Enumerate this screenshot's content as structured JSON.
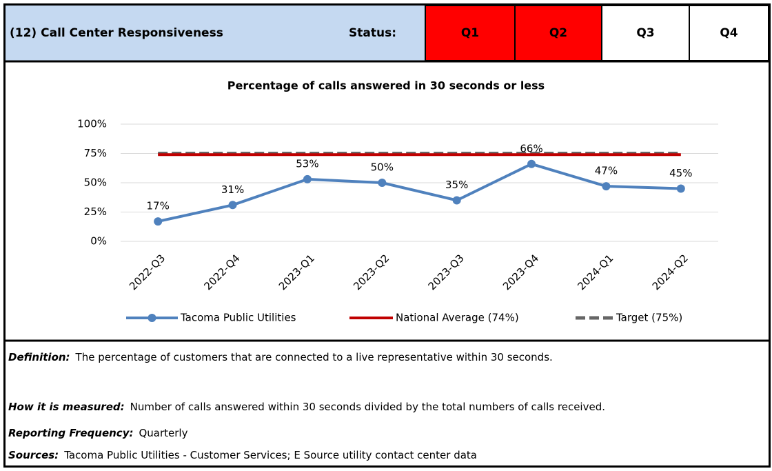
{
  "header": {
    "title": "(12) Call Center Responsiveness",
    "status_label": "Status:",
    "quarters": [
      {
        "label": "Q1",
        "color": "#ff0000"
      },
      {
        "label": "Q2",
        "color": "#ff0000"
      },
      {
        "label": "Q3",
        "color": "#ffffff"
      },
      {
        "label": "Q4",
        "color": "#ffffff"
      }
    ]
  },
  "chart_data": {
    "type": "line",
    "title": "Percentage of calls answered in 30 seconds or less",
    "categories": [
      "2022-Q3",
      "2022-Q4",
      "2023-Q1",
      "2023-Q2",
      "2023-Q3",
      "2023-Q4",
      "2024-Q1",
      "2024-Q2"
    ],
    "series": [
      {
        "name": "Tacoma Public Utilities",
        "color": "#4f81bd",
        "markers": true,
        "values": [
          17,
          31,
          53,
          50,
          35,
          66,
          47,
          45
        ],
        "value_labels": [
          "17%",
          "31%",
          "53%",
          "50%",
          "35%",
          "66%",
          "47%",
          "45%"
        ]
      },
      {
        "name": "National Average (74%)",
        "color": "#c00000",
        "values": [
          74,
          74,
          74,
          74,
          74,
          74,
          74,
          74
        ]
      },
      {
        "name": "Target (75%)",
        "color": "#666666",
        "dashed": true,
        "values": [
          75,
          75,
          75,
          75,
          75,
          75,
          75,
          75
        ]
      }
    ],
    "ylim": [
      0,
      100
    ],
    "yticks": [
      {
        "value": 0,
        "label": "0%"
      },
      {
        "value": 25,
        "label": "25%"
      },
      {
        "value": 50,
        "label": "50%"
      },
      {
        "value": 75,
        "label": "75%"
      },
      {
        "value": 100,
        "label": "100%"
      }
    ],
    "grid": true,
    "legend": "bottom"
  },
  "notes": [
    {
      "label": "Definition:",
      "text": "The percentage of customers that are connected to a live representative within 30 seconds."
    },
    {
      "label": "How it is measured:",
      "text": "Number of calls answered within 30 seconds divided by the total numbers of calls received."
    },
    {
      "label": "Reporting Frequency:",
      "text": "Quarterly"
    },
    {
      "label": "Sources:",
      "text": "Tacoma Public Utilities - Customer Services; E Source utility contact center data"
    }
  ]
}
